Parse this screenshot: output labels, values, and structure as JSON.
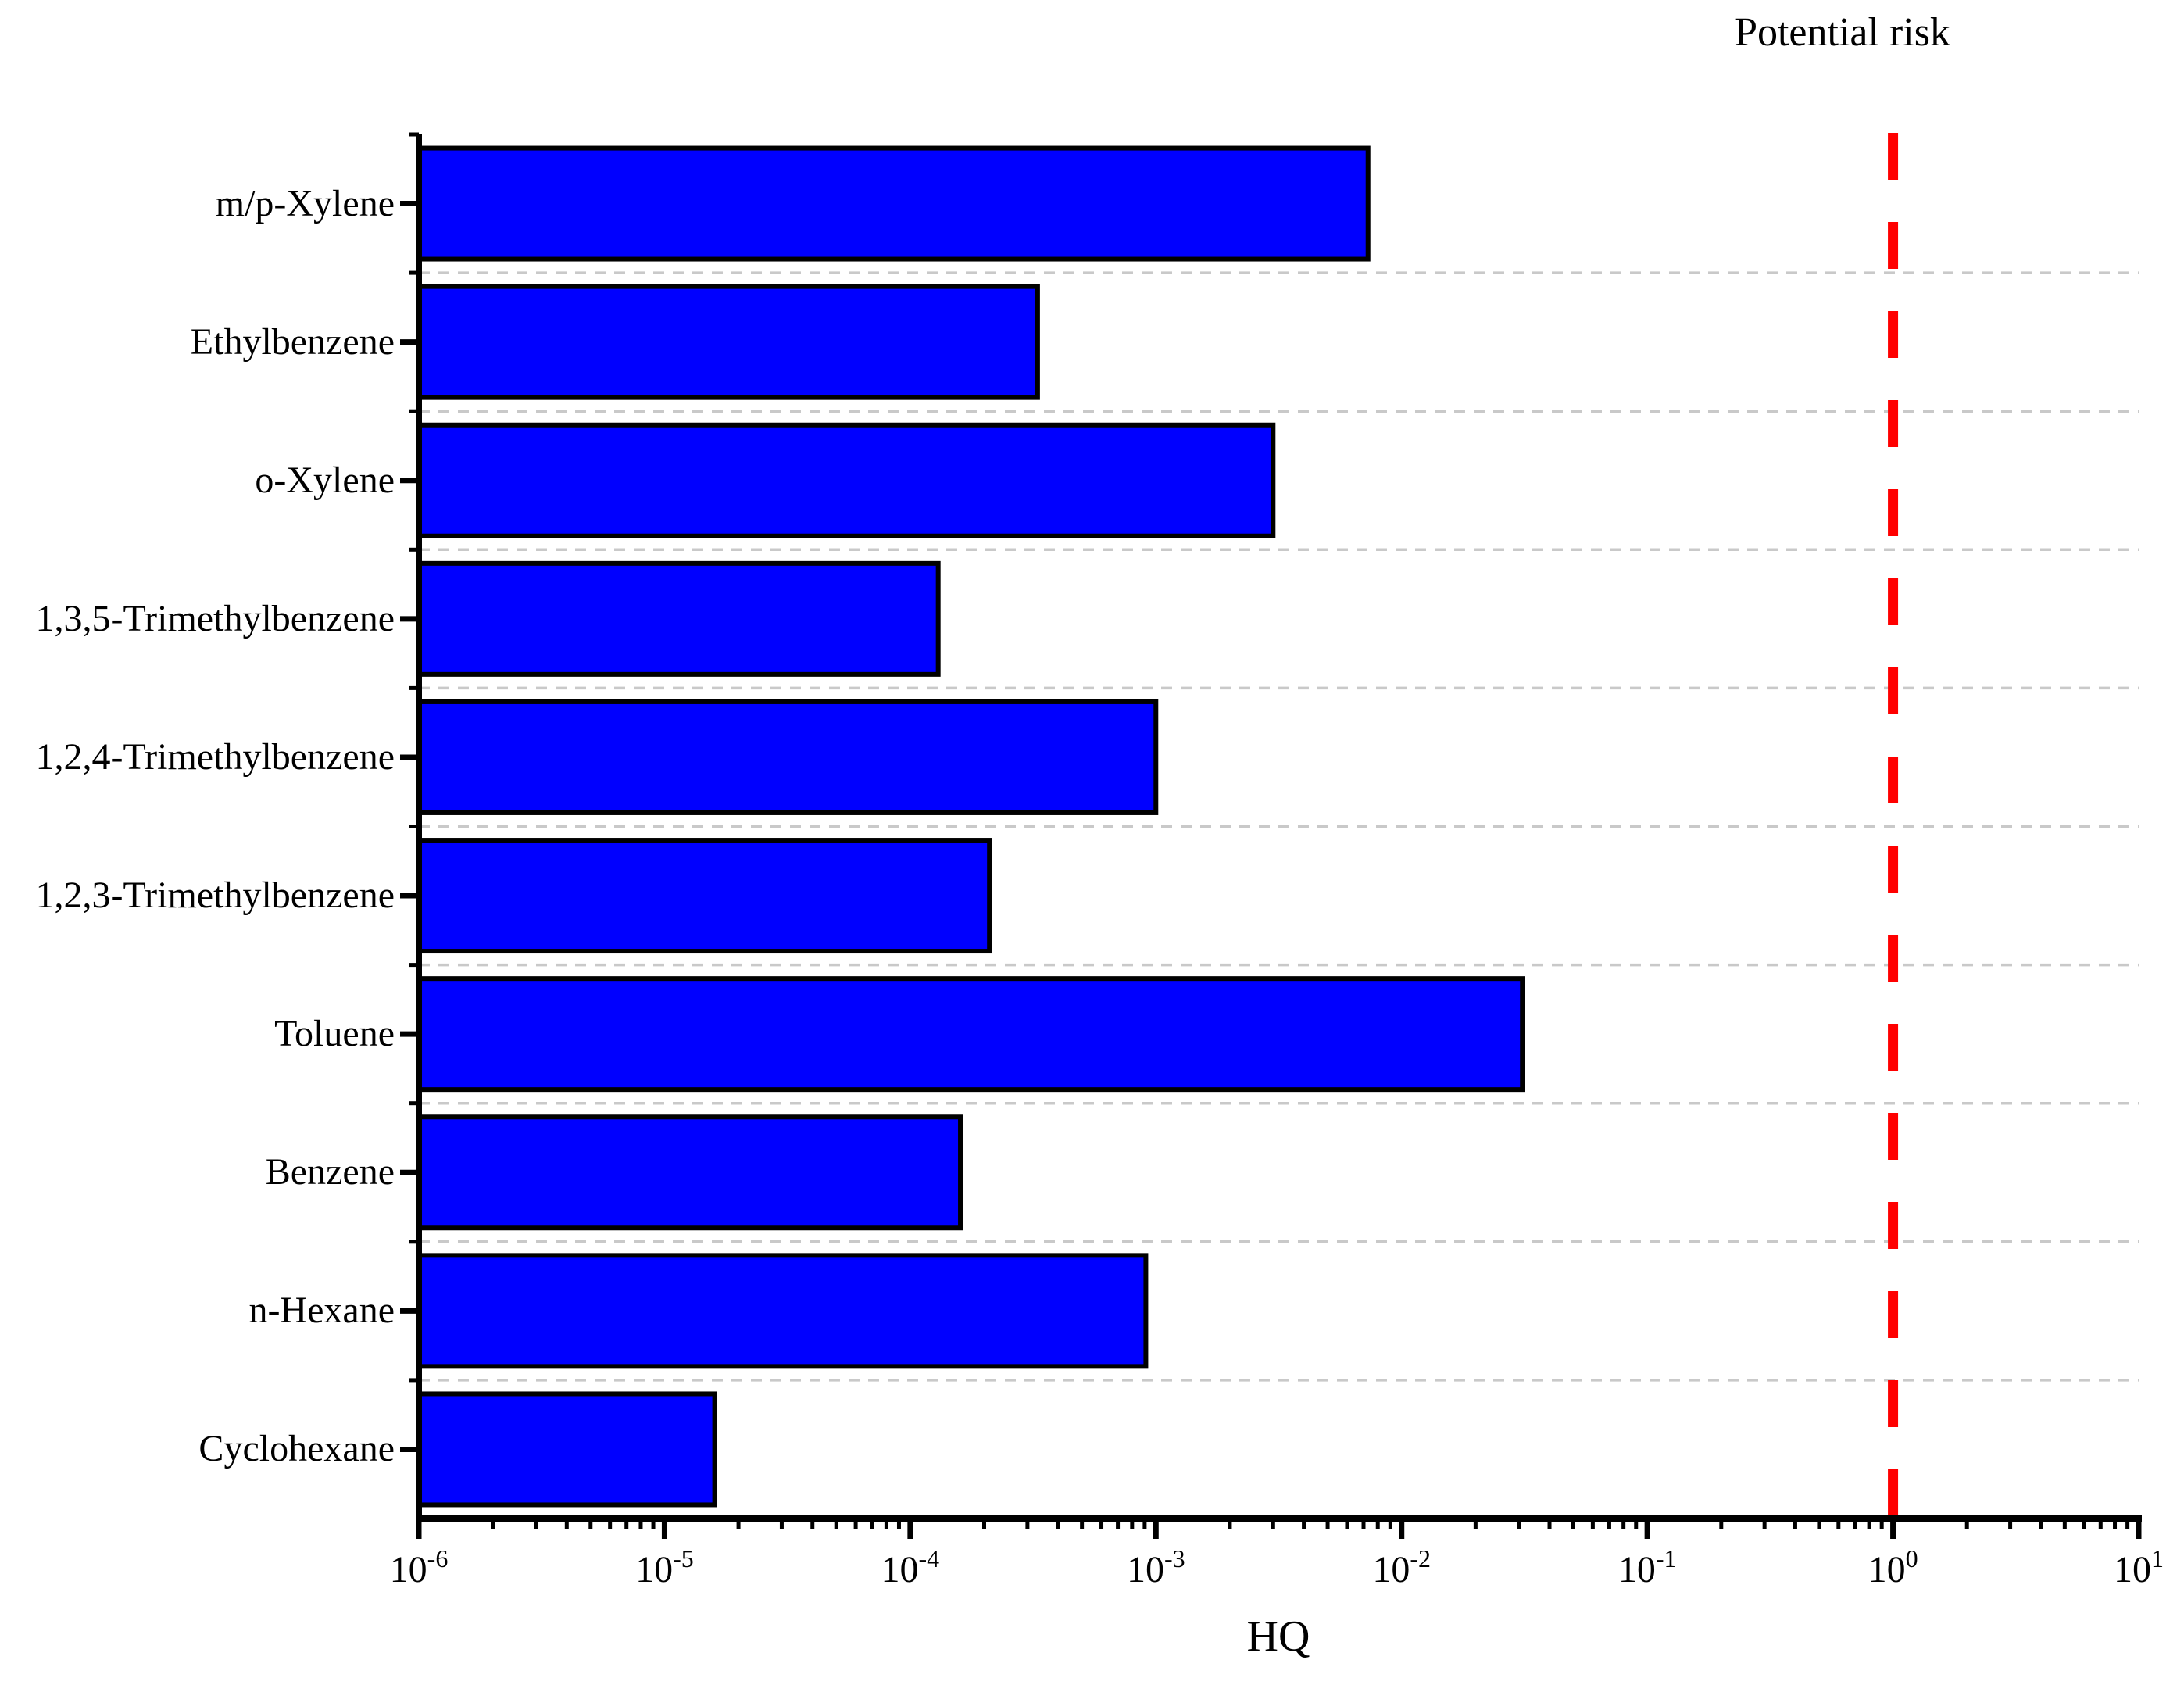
{
  "chart_data": {
    "type": "bar",
    "orientation": "horizontal",
    "x_scale": "log",
    "xlabel": "HQ",
    "xlim": [
      1e-06,
      10
    ],
    "x_ticks": [
      {
        "base": "10",
        "exp": "-6"
      },
      {
        "base": "10",
        "exp": "-5"
      },
      {
        "base": "10",
        "exp": "-4"
      },
      {
        "base": "10",
        "exp": "-3"
      },
      {
        "base": "10",
        "exp": "-2"
      },
      {
        "base": "10",
        "exp": "-1"
      },
      {
        "base": "10",
        "exp": "0"
      },
      {
        "base": "10",
        "exp": "1"
      }
    ],
    "categories": [
      "m/p-Xylene",
      "Ethylbenzene",
      "o-Xylene",
      "1,3,5-Trimethylbenzene",
      "1,2,4-Trimethylbenzene",
      "1,2,3-Trimethylbenzene",
      "Toluene",
      "Benzene",
      "n-Hexane",
      "Cyclohexane"
    ],
    "values": [
      0.0073,
      0.00033,
      0.003,
      0.00013,
      0.001,
      0.00021,
      0.031,
      0.00016,
      0.00091,
      1.6e-05
    ],
    "reference_line": {
      "value": 1,
      "label": "Potential risk",
      "color": "#ff0000",
      "style": "dashed"
    },
    "colors": {
      "bar_fill": "#0000ff",
      "bar_edge": "#000000",
      "gridline": "#c9c9c9",
      "axis": "#000000",
      "text": "#000000"
    },
    "grid": "dashed horizontal lines at category band boundaries",
    "legend": "none"
  }
}
